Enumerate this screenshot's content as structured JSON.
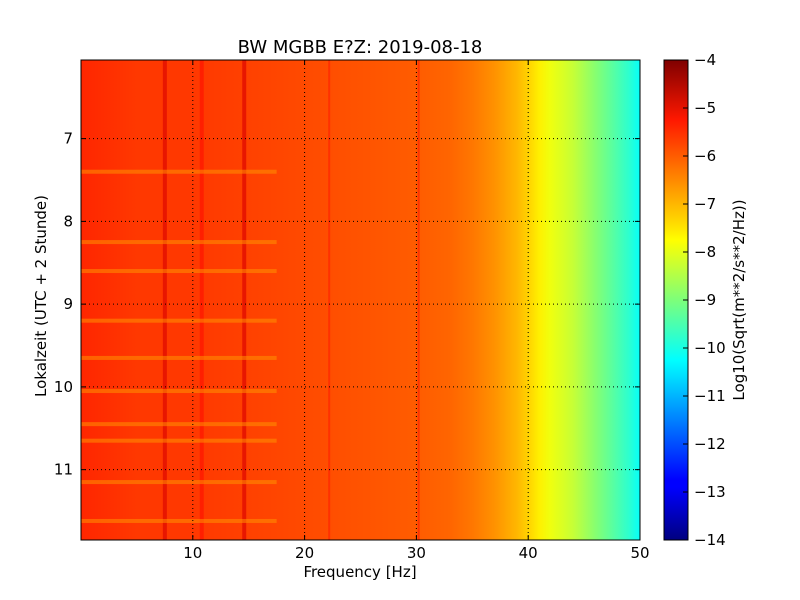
{
  "chart_data": {
    "type": "heatmap",
    "title": "BW MGBB E?Z: 2019-08-18",
    "xlabel": "Frequency [Hz]",
    "ylabel": "Lokalzeit (UTC + 2 Stunde)",
    "colorbar_label": "Log10(Sqrt(m**2/s**2/Hz))",
    "xlim": [
      0,
      50
    ],
    "ylim": [
      11.85,
      6.05
    ],
    "x_ticks": [
      10,
      20,
      30,
      40,
      50
    ],
    "x_tick_labels": [
      "10",
      "20",
      "30",
      "40",
      "50"
    ],
    "y_ticks": [
      7,
      8,
      9,
      10,
      11
    ],
    "y_tick_labels": [
      "7",
      "8",
      "9",
      "10",
      "11"
    ],
    "y_inverted": true,
    "grid": true,
    "colormap": "jet",
    "color_range": [
      -14,
      -4
    ],
    "colorbar_ticks": [
      -4,
      -5,
      -6,
      -7,
      -8,
      -9,
      -10,
      -11,
      -12,
      -13,
      -14
    ],
    "colorbar_tick_labels": [
      "−4",
      "−5",
      "−6",
      "−7",
      "−8",
      "−9",
      "−10",
      "−11",
      "−12",
      "−13",
      "−14"
    ],
    "spectrum_profile": {
      "frequency": [
        0,
        5,
        10,
        15,
        20,
        25,
        30,
        33,
        35,
        37,
        39,
        40,
        41,
        42,
        43,
        44,
        45,
        46,
        47,
        48,
        49,
        50
      ],
      "value": [
        -5.4,
        -5.6,
        -5.6,
        -5.7,
        -5.8,
        -5.9,
        -6.0,
        -6.1,
        -6.3,
        -6.6,
        -7.0,
        -7.3,
        -7.6,
        -7.9,
        -8.1,
        -8.3,
        -8.6,
        -8.9,
        -9.2,
        -9.5,
        -9.8,
        -10.2
      ]
    },
    "persistent_lines": [
      {
        "frequency": 7.5,
        "value": -5.0
      },
      {
        "frequency": 10.8,
        "value": -5.3
      },
      {
        "frequency": 14.6,
        "value": -5.0
      },
      {
        "frequency": 22.2,
        "value": -5.5
      },
      {
        "frequency": 30.2,
        "value": -5.5
      }
    ],
    "gap_times": [
      7.4,
      8.25,
      8.6,
      9.2,
      9.65,
      10.05,
      10.45,
      10.65,
      11.15,
      11.62
    ]
  }
}
